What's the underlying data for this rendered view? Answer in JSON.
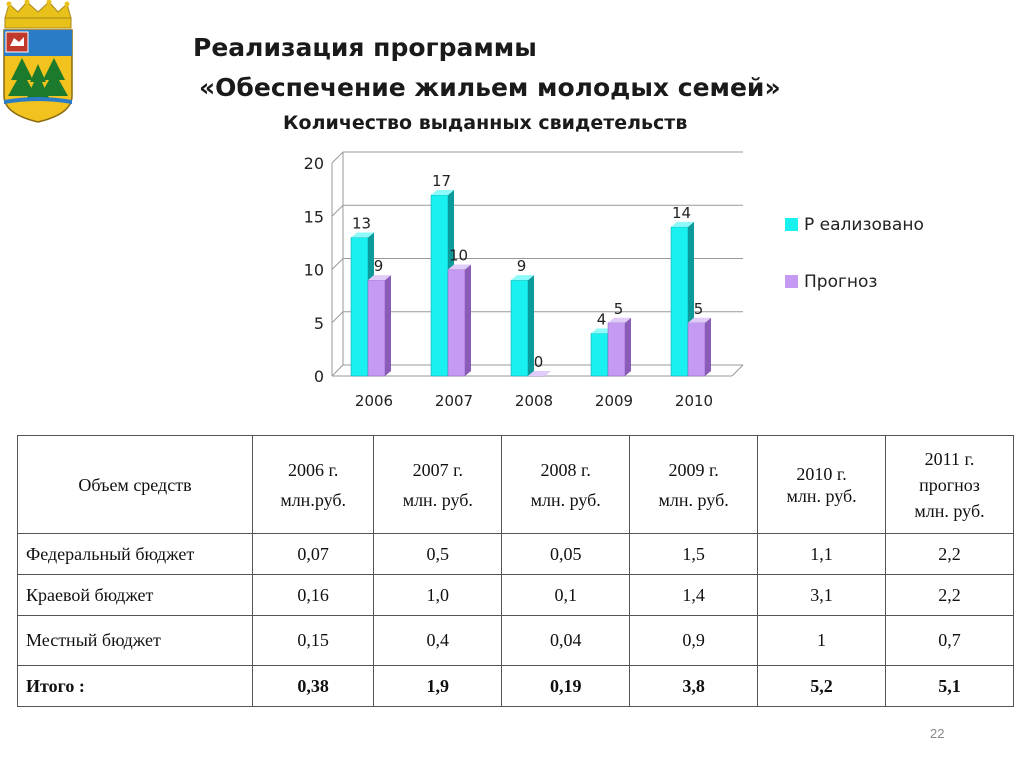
{
  "slide": {
    "title_line1": "Реализация программы",
    "title_line2": "«Обеспечение жильем молодых семей»",
    "page_number": "22"
  },
  "crest": {
    "description_icon": "coat-of-arms-icon",
    "colors": {
      "crown": "#e8c21a",
      "sky": "#2a7cc7",
      "field": "#f2c21e",
      "trees": "#1c7a2c",
      "flag": "#c0392b"
    }
  },
  "chart_data": {
    "type": "bar",
    "title": "Количество выданных свидетельств",
    "categories": [
      "2006",
      "2007",
      "2008",
      "2009",
      "2010"
    ],
    "series": [
      {
        "name": "Р еализовано",
        "values": [
          13,
          17,
          9,
          4,
          14
        ],
        "color": "#19f0f0",
        "side": "#0c9a9a",
        "top": "#8ffafa"
      },
      {
        "name": "Прогноз",
        "values": [
          9,
          10,
          0,
          5,
          5
        ],
        "color": "#c59af2",
        "side": "#8a5cb8",
        "top": "#e0ccf8"
      }
    ],
    "ylim": [
      0,
      20
    ],
    "yticks": [
      0,
      5,
      10,
      15,
      20
    ],
    "grid": true,
    "legend": "right",
    "data_labels": true,
    "style": "3d"
  },
  "table": {
    "header_first": "Объем  средств",
    "columns": [
      {
        "year": "2006 г.",
        "unit": "млн.руб."
      },
      {
        "year": "2007 г.",
        "unit": "млн. руб."
      },
      {
        "year": "2008 г.",
        "unit": "млн. руб."
      },
      {
        "year": "2009 г.",
        "unit": "млн. руб."
      },
      {
        "year": "2010 г.",
        "unit": "млн. руб."
      },
      {
        "year": "2011 г.",
        "note": "прогноз",
        "unit": "млн. руб."
      }
    ],
    "rows": [
      {
        "label": "Федеральный бюджет",
        "values": [
          "0,07",
          "0,5",
          "0,05",
          "1,5",
          "1,1",
          "2,2"
        ]
      },
      {
        "label": "Краевой бюджет",
        "values": [
          "0,16",
          "1,0",
          "0,1",
          "1,4",
          "3,1",
          "2,2"
        ]
      },
      {
        "label": "Местный бюджет",
        "values": [
          "0,15",
          "0,4",
          "0,04",
          "0,9",
          "1",
          "0,7"
        ]
      }
    ],
    "total": {
      "label": "Итого :",
      "values": [
        "0,38",
        "1,9",
        "0,19",
        "3,8",
        "5,2",
        "5,1"
      ]
    }
  }
}
